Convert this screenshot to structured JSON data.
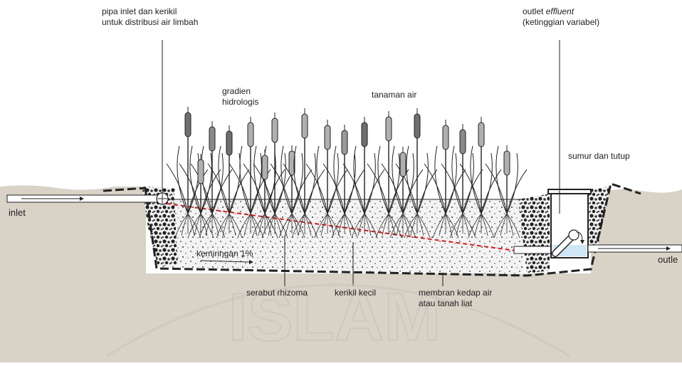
{
  "labels": {
    "inlet_pipe": [
      "pipa inlet dan kerikil",
      "untuk distribusi air limbah"
    ],
    "outlet_prefix": "outlet ",
    "outlet_italic": "effluent",
    "outlet_line2": "(ketinggian variabel)",
    "gradient": [
      "gradien",
      "hidrologis"
    ],
    "plants": "tanaman air",
    "well": "sumur dan tutup",
    "inlet": "inlet",
    "outlet": "outle",
    "slope": "kemiringan 1%",
    "rhizome": "serabut rhizoma",
    "gravel": "kerikil kecil",
    "membrane": [
      "membran kedap air",
      "atau tanah liat"
    ],
    "watermark": "ISLAM"
  }
}
